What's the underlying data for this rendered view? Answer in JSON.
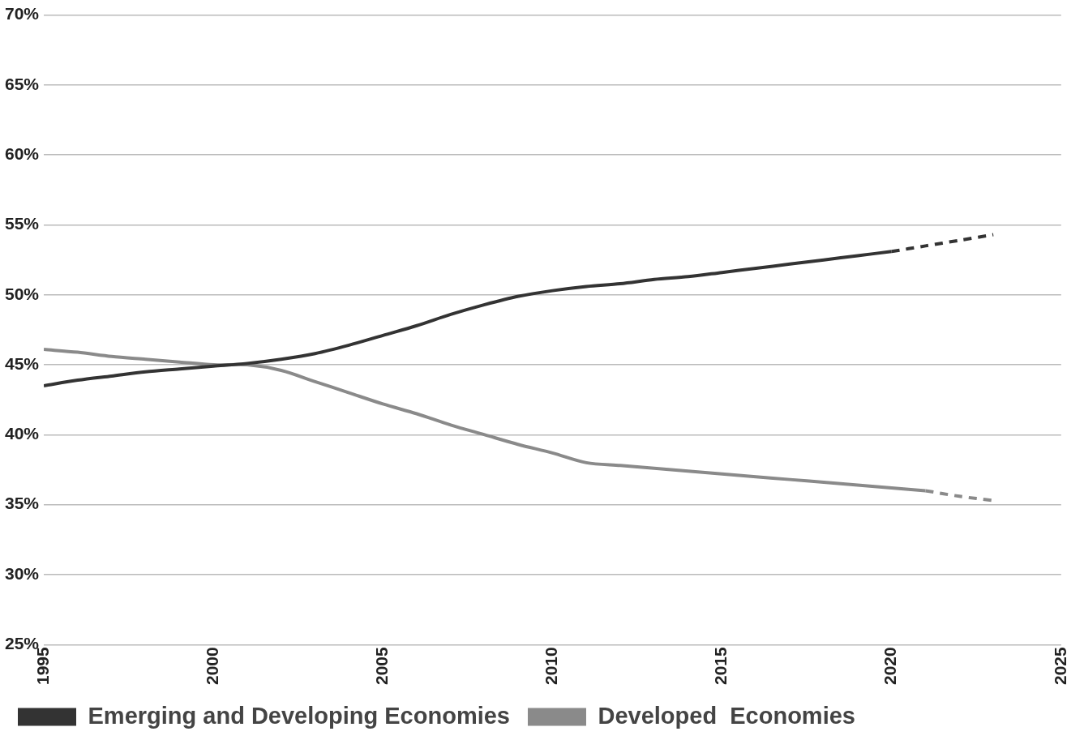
{
  "chart_data": {
    "type": "line",
    "x": [
      1995,
      1996,
      1997,
      1998,
      1999,
      2000,
      2001,
      2002,
      2003,
      2004,
      2005,
      2006,
      2007,
      2008,
      2009,
      2010,
      2011,
      2012,
      2013,
      2014,
      2015,
      2016,
      2017,
      2018,
      2019,
      2020,
      2021,
      2022,
      2023
    ],
    "series": [
      {
        "name": "Emerging and Developing Economies",
        "color": "#333333",
        "line_style": "solid",
        "values": [
          43.5,
          43.9,
          44.2,
          44.5,
          44.7,
          44.9,
          45.1,
          45.4,
          45.8,
          46.4,
          47.1,
          47.8,
          48.6,
          49.3,
          49.9,
          50.3,
          50.6,
          50.8,
          51.1,
          51.3,
          51.6,
          51.9,
          52.2,
          52.5,
          52.8,
          53.1,
          null,
          null,
          null
        ]
      },
      {
        "name": "Developed  Economies",
        "color": "#8a8a8a",
        "line_style": "solid",
        "values": [
          46.1,
          45.9,
          45.6,
          45.4,
          45.2,
          45.0,
          45.0,
          44.6,
          43.8,
          43.0,
          42.2,
          41.5,
          40.7,
          40.0,
          39.3,
          38.7,
          38.0,
          37.8,
          37.6,
          37.4,
          37.2,
          37.0,
          36.8,
          36.6,
          36.4,
          36.2,
          36.0,
          null,
          null
        ]
      },
      {
        "name": "Emerging and Developing Economies",
        "color": "#333333",
        "line_style": "dashed",
        "values": [
          null,
          null,
          null,
          null,
          null,
          null,
          null,
          null,
          null,
          null,
          null,
          null,
          null,
          null,
          null,
          null,
          null,
          null,
          null,
          null,
          null,
          null,
          null,
          null,
          null,
          53.1,
          53.5,
          53.9,
          54.3
        ]
      },
      {
        "name": "Developed  Economies",
        "color": "#8a8a8a",
        "line_style": "dashed",
        "values": [
          null,
          null,
          null,
          null,
          null,
          null,
          null,
          null,
          null,
          null,
          null,
          null,
          null,
          null,
          null,
          null,
          null,
          null,
          null,
          null,
          null,
          null,
          null,
          null,
          null,
          null,
          36.0,
          35.6,
          35.3
        ]
      }
    ],
    "xlim": [
      1995,
      2025
    ],
    "xticks": [
      1995,
      2000,
      2005,
      2010,
      2015,
      2020,
      2025
    ],
    "ylim": [
      25,
      70
    ],
    "yticks": [
      {
        "value": 25,
        "label": "25%"
      },
      {
        "value": 30,
        "label": "30%"
      },
      {
        "value": 35,
        "label": "35%"
      },
      {
        "value": 40,
        "label": "40%"
      },
      {
        "value": 45,
        "label": "45%"
      },
      {
        "value": 50,
        "label": "50%"
      },
      {
        "value": 55,
        "label": "55%"
      },
      {
        "value": 60,
        "label": "60%"
      },
      {
        "value": 65,
        "label": "65%"
      },
      {
        "value": 70,
        "label": "70%"
      }
    ],
    "grid": true,
    "legend": "bottom"
  }
}
